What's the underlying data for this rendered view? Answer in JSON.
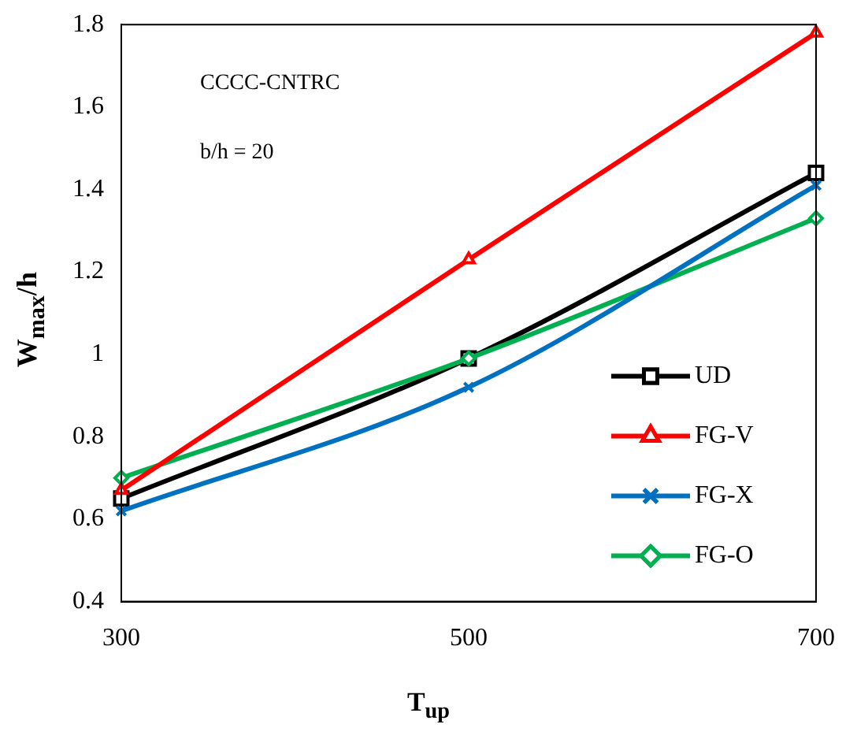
{
  "chart_data": {
    "type": "line",
    "xlabel": "T$_{up}$",
    "ylabel": "W$_{max}$/h",
    "annotations": [
      "CCCC-CNTRC",
      "b/h = 20"
    ],
    "x": [
      300,
      500,
      700
    ],
    "series": [
      {
        "name": "UD",
        "color": "#000000",
        "marker": "square",
        "values": [
          0.65,
          0.99,
          1.44
        ]
      },
      {
        "name": "FG-V",
        "color": "#ff0000",
        "marker": "triangle",
        "values": [
          0.67,
          1.23,
          1.78
        ]
      },
      {
        "name": "FG-X",
        "color": "#0070c0",
        "marker": "cross",
        "values": [
          0.62,
          0.92,
          1.41
        ]
      },
      {
        "name": "FG-O",
        "color": "#00b050",
        "marker": "diamond",
        "values": [
          0.7,
          0.99,
          1.33
        ]
      }
    ],
    "xlim": [
      300,
      700
    ],
    "xticks": [
      300,
      500,
      700
    ],
    "ylim": [
      0.4,
      1.8
    ],
    "yticks": [
      0.4,
      0.6,
      0.8,
      1,
      1.2,
      1.4,
      1.6,
      1.8
    ],
    "grid": false,
    "legend": "bottom right",
    "line_style": "solid"
  }
}
